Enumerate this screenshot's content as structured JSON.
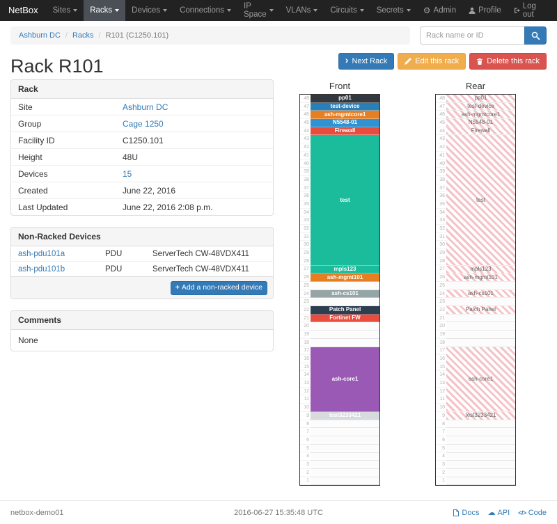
{
  "nav": {
    "brand": "NetBox",
    "items": [
      {
        "label": "Sites",
        "active": false
      },
      {
        "label": "Racks",
        "active": true
      },
      {
        "label": "Devices",
        "active": false
      },
      {
        "label": "Connections",
        "active": false
      },
      {
        "label": "IP Space",
        "active": false
      },
      {
        "label": "VLANs",
        "active": false
      },
      {
        "label": "Circuits",
        "active": false
      },
      {
        "label": "Secrets",
        "active": false
      }
    ],
    "right": [
      {
        "label": "Admin",
        "icon": "gear-icon"
      },
      {
        "label": "Profile",
        "icon": "user-icon"
      },
      {
        "label": "Log out",
        "icon": "logout-icon"
      }
    ]
  },
  "breadcrumb": [
    {
      "label": "Ashburn DC",
      "link": true
    },
    {
      "label": "Racks",
      "link": true
    },
    {
      "label": "R101 (C1250.101)",
      "link": false
    }
  ],
  "search": {
    "placeholder": "Rack name or ID",
    "icon": "search-icon"
  },
  "actions": {
    "next": {
      "label": "Next Rack",
      "icon": "chevron-right-icon",
      "color": "#337ab7"
    },
    "edit": {
      "label": "Edit this rack",
      "icon": "pencil-icon",
      "color": "#f0ad4e"
    },
    "delete": {
      "label": "Delete this rack",
      "icon": "trash-icon",
      "color": "#d9534f"
    }
  },
  "page_title": "Rack R101",
  "panels": {
    "rack": {
      "title": "Rack",
      "rows": [
        {
          "label": "Site",
          "value": "Ashburn DC",
          "link": true
        },
        {
          "label": "Group",
          "value": "Cage 1250",
          "link": true
        },
        {
          "label": "Facility ID",
          "value": "C1250.101",
          "link": false
        },
        {
          "label": "Height",
          "value": "48U",
          "link": false
        },
        {
          "label": "Devices",
          "value": "15",
          "link": true
        },
        {
          "label": "Created",
          "value": "June 22, 2016",
          "link": false
        },
        {
          "label": "Last Updated",
          "value": "June 22, 2016 2:08 p.m.",
          "link": false
        }
      ]
    },
    "non_racked": {
      "title": "Non-Racked Devices",
      "rows": [
        {
          "name": "ash-pdu101a",
          "type": "PDU",
          "model": "ServerTech CW-48VDX411"
        },
        {
          "name": "ash-pdu101b",
          "type": "PDU",
          "model": "ServerTech CW-48VDX411"
        }
      ],
      "add_label": "Add a non-racked device",
      "add_icon": "plus-icon"
    },
    "comments": {
      "title": "Comments",
      "body": "None"
    }
  },
  "racks": {
    "unit_count": 48,
    "front": {
      "title": "Front",
      "face": "front",
      "units": [
        {
          "size": 1,
          "label": "pp01",
          "color": "#32383e"
        },
        {
          "size": 1,
          "label": "test-device",
          "color": "#2980b9"
        },
        {
          "size": 1,
          "label": "ash-mgmtcore1",
          "color": "#e67e22"
        },
        {
          "size": 1,
          "label": "N5548-01",
          "color": "#3092d0"
        },
        {
          "size": 1,
          "label": "Firewall",
          "color": "#e74c3c"
        },
        {
          "size": 16,
          "label": "test",
          "color": "#1abc9c"
        },
        {
          "size": 1,
          "label": "mpls123",
          "color": "#1abc9c"
        },
        {
          "size": 1,
          "label": "ash-mgmt101",
          "color": "#e67e22"
        },
        {
          "size": 1,
          "label": ""
        },
        {
          "size": 1,
          "label": "ash-cs101",
          "color": "#95a5a6"
        },
        {
          "size": 1,
          "label": ""
        },
        {
          "size": 1,
          "label": "Patch Panel",
          "color": "#2c3e50"
        },
        {
          "size": 1,
          "label": "Fortinet FW",
          "color": "#e74c3c"
        },
        {
          "size": 1,
          "label": ""
        },
        {
          "size": 1,
          "label": ""
        },
        {
          "size": 1,
          "label": ""
        },
        {
          "size": 8,
          "label": "ash-core1",
          "color": "#9b59b6"
        },
        {
          "size": 1,
          "label": "test3233421",
          "color": "#d8dbde",
          "text_color": "#ffffff"
        },
        {
          "size": 1,
          "label": ""
        },
        {
          "size": 1,
          "label": ""
        },
        {
          "size": 1,
          "label": ""
        },
        {
          "size": 1,
          "label": ""
        },
        {
          "size": 1,
          "label": ""
        },
        {
          "size": 1,
          "label": ""
        },
        {
          "size": 1,
          "label": ""
        },
        {
          "size": 1,
          "label": ""
        }
      ]
    },
    "rear": {
      "title": "Rear",
      "face": "rear",
      "units": [
        {
          "size": 1,
          "label": "pp01"
        },
        {
          "size": 1,
          "label": "test-device"
        },
        {
          "size": 1,
          "label": "ash-mgmtcore1"
        },
        {
          "size": 1,
          "label": "N5548-01"
        },
        {
          "size": 1,
          "label": "Firewall"
        },
        {
          "size": 16,
          "label": "test"
        },
        {
          "size": 1,
          "label": "mpls123"
        },
        {
          "size": 1,
          "label": "ash-mgmt101"
        },
        {
          "size": 1,
          "label": ""
        },
        {
          "size": 1,
          "label": "ash-cs101"
        },
        {
          "size": 1,
          "label": ""
        },
        {
          "size": 1,
          "label": "Patch Panel"
        },
        {
          "size": 1,
          "label": ""
        },
        {
          "size": 1,
          "label": ""
        },
        {
          "size": 1,
          "label": ""
        },
        {
          "size": 1,
          "label": ""
        },
        {
          "size": 8,
          "label": "ash-core1"
        },
        {
          "size": 1,
          "label": "test3233421"
        },
        {
          "size": 1,
          "label": ""
        },
        {
          "size": 1,
          "label": ""
        },
        {
          "size": 1,
          "label": ""
        },
        {
          "size": 1,
          "label": ""
        },
        {
          "size": 1,
          "label": ""
        },
        {
          "size": 1,
          "label": ""
        },
        {
          "size": 1,
          "label": ""
        },
        {
          "size": 1,
          "label": ""
        }
      ]
    }
  },
  "footer": {
    "hostname": "netbox-demo01",
    "timestamp": "2016-06-27 15:35:48 UTC",
    "links": [
      {
        "label": "Docs",
        "icon": "docs-icon"
      },
      {
        "label": "API",
        "icon": "cloud-icon"
      },
      {
        "label": "Code",
        "icon": "code-icon"
      }
    ]
  }
}
